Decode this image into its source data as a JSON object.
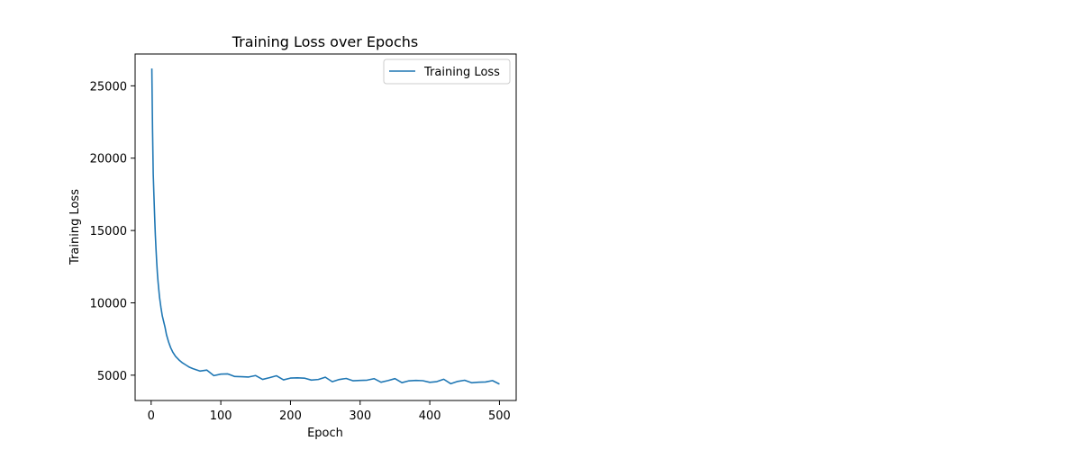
{
  "chart_data": {
    "type": "line",
    "title": "Training Loss over Epochs",
    "xlabel": "Epoch",
    "ylabel": "Training Loss",
    "xlim": [
      -23,
      524
    ],
    "ylim": [
      3250,
      27200
    ],
    "xticks": [
      0,
      100,
      200,
      300,
      400,
      500
    ],
    "yticks": [
      5000,
      10000,
      15000,
      20000,
      25000
    ],
    "grid": false,
    "legend_position": "top-right",
    "color": "#1f77b4",
    "series": [
      {
        "name": "Training Loss",
        "x": [
          1,
          2,
          3,
          4,
          5,
          6,
          7,
          8,
          9,
          10,
          12,
          14,
          16,
          18,
          20,
          22,
          25,
          28,
          31,
          35,
          40,
          45,
          50,
          55,
          60,
          70,
          80,
          90,
          100,
          110,
          120,
          130,
          140,
          150,
          160,
          170,
          180,
          190,
          200,
          210,
          220,
          230,
          240,
          250,
          260,
          270,
          280,
          290,
          300,
          310,
          320,
          330,
          340,
          350,
          360,
          370,
          380,
          390,
          400,
          410,
          420,
          430,
          440,
          450,
          460,
          470,
          480,
          490,
          500
        ],
        "y": [
          26200,
          22000,
          18900,
          17400,
          16000,
          14700,
          13700,
          12800,
          12000,
          11400,
          10400,
          9700,
          9100,
          8700,
          8300,
          7800,
          7300,
          6900,
          6600,
          6300,
          6050,
          5850,
          5700,
          5550,
          5450,
          5300,
          5200,
          5120,
          5060,
          5000,
          4960,
          4920,
          4880,
          4860,
          4840,
          4830,
          4820,
          4800,
          4790,
          4780,
          4760,
          4740,
          4720,
          4710,
          4700,
          4690,
          4680,
          4670,
          4660,
          4660,
          4650,
          4640,
          4630,
          4620,
          4610,
          4600,
          4600,
          4590,
          4580,
          4570,
          4570,
          4560,
          4560,
          4550,
          4540,
          4530,
          4530,
          4520,
          4510
        ]
      }
    ]
  }
}
